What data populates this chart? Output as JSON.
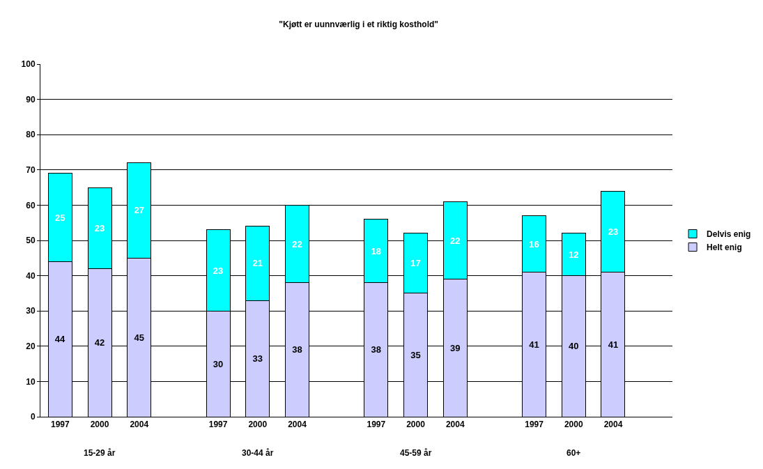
{
  "chart_data": {
    "type": "bar",
    "title": "\"Kjøtt er uunnværlig i et riktig kosthold\"",
    "categories": [
      "1997",
      "2000",
      "2004",
      null,
      "1997",
      "2000",
      "2004",
      null,
      "1997",
      "2000",
      "2004",
      null,
      "1997",
      "2000",
      "2004",
      null
    ],
    "series": [
      {
        "name": "Helt enig",
        "color": "#ccccff",
        "values": [
          44,
          42,
          45,
          null,
          30,
          33,
          38,
          null,
          38,
          35,
          39,
          null,
          41,
          40,
          41,
          null
        ]
      },
      {
        "name": "Delvis enig",
        "color": "#00ffff",
        "values": [
          25,
          23,
          27,
          null,
          23,
          21,
          22,
          null,
          18,
          17,
          22,
          null,
          16,
          12,
          23,
          null
        ]
      }
    ],
    "annotations": [
      "15-29 år",
      "30-44 år",
      "45-59 år",
      "60+"
    ],
    "stacked": true,
    "data_labels": true,
    "ylim": [
      0,
      100
    ],
    "yticks": [
      0,
      10,
      20,
      30,
      40,
      50,
      60,
      70,
      80,
      90,
      100
    ],
    "grid": "y",
    "legend": "right"
  }
}
